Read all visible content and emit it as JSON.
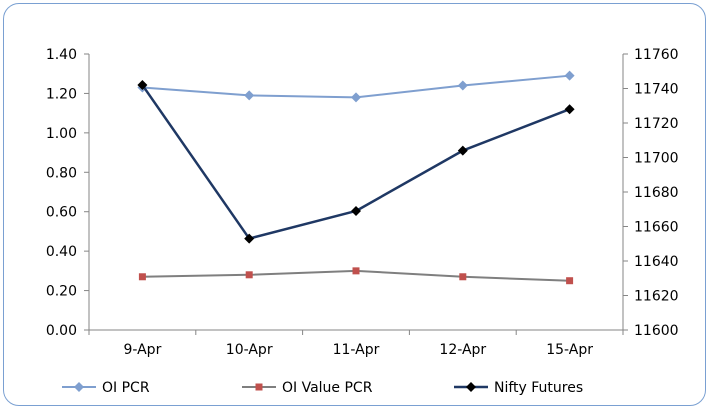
{
  "chart_data": {
    "type": "line",
    "categories": [
      "9-Apr",
      "10-Apr",
      "11-Apr",
      "12-Apr",
      "15-Apr"
    ],
    "series": [
      {
        "name": "OI PCR",
        "axis": "left",
        "color": "#7f9fcf",
        "marker": "diamond",
        "values": [
          1.23,
          1.19,
          1.18,
          1.24,
          1.29
        ]
      },
      {
        "name": "OI Value PCR",
        "axis": "left",
        "color": "#7f7f7f",
        "marker": "square",
        "marker_color": "#c0504d",
        "values": [
          0.27,
          0.28,
          0.3,
          0.27,
          0.25
        ]
      },
      {
        "name": "Nifty Futures",
        "axis": "right",
        "color": "#1f3864",
        "marker": "diamond",
        "marker_color": "#000000",
        "values": [
          11742,
          11653,
          11669,
          11704,
          11728
        ]
      }
    ],
    "y_left": {
      "min": 0,
      "max": 1.4,
      "step": 0.2,
      "ticks": [
        "0.00",
        "0.20",
        "0.40",
        "0.60",
        "0.80",
        "1.00",
        "1.20",
        "1.40"
      ]
    },
    "y_right": {
      "min": 11600,
      "max": 11760,
      "step": 20,
      "ticks": [
        "11600",
        "11620",
        "11640",
        "11660",
        "11680",
        "11700",
        "11720",
        "11740",
        "11760"
      ]
    },
    "grid": false,
    "legend_position": "bottom"
  }
}
